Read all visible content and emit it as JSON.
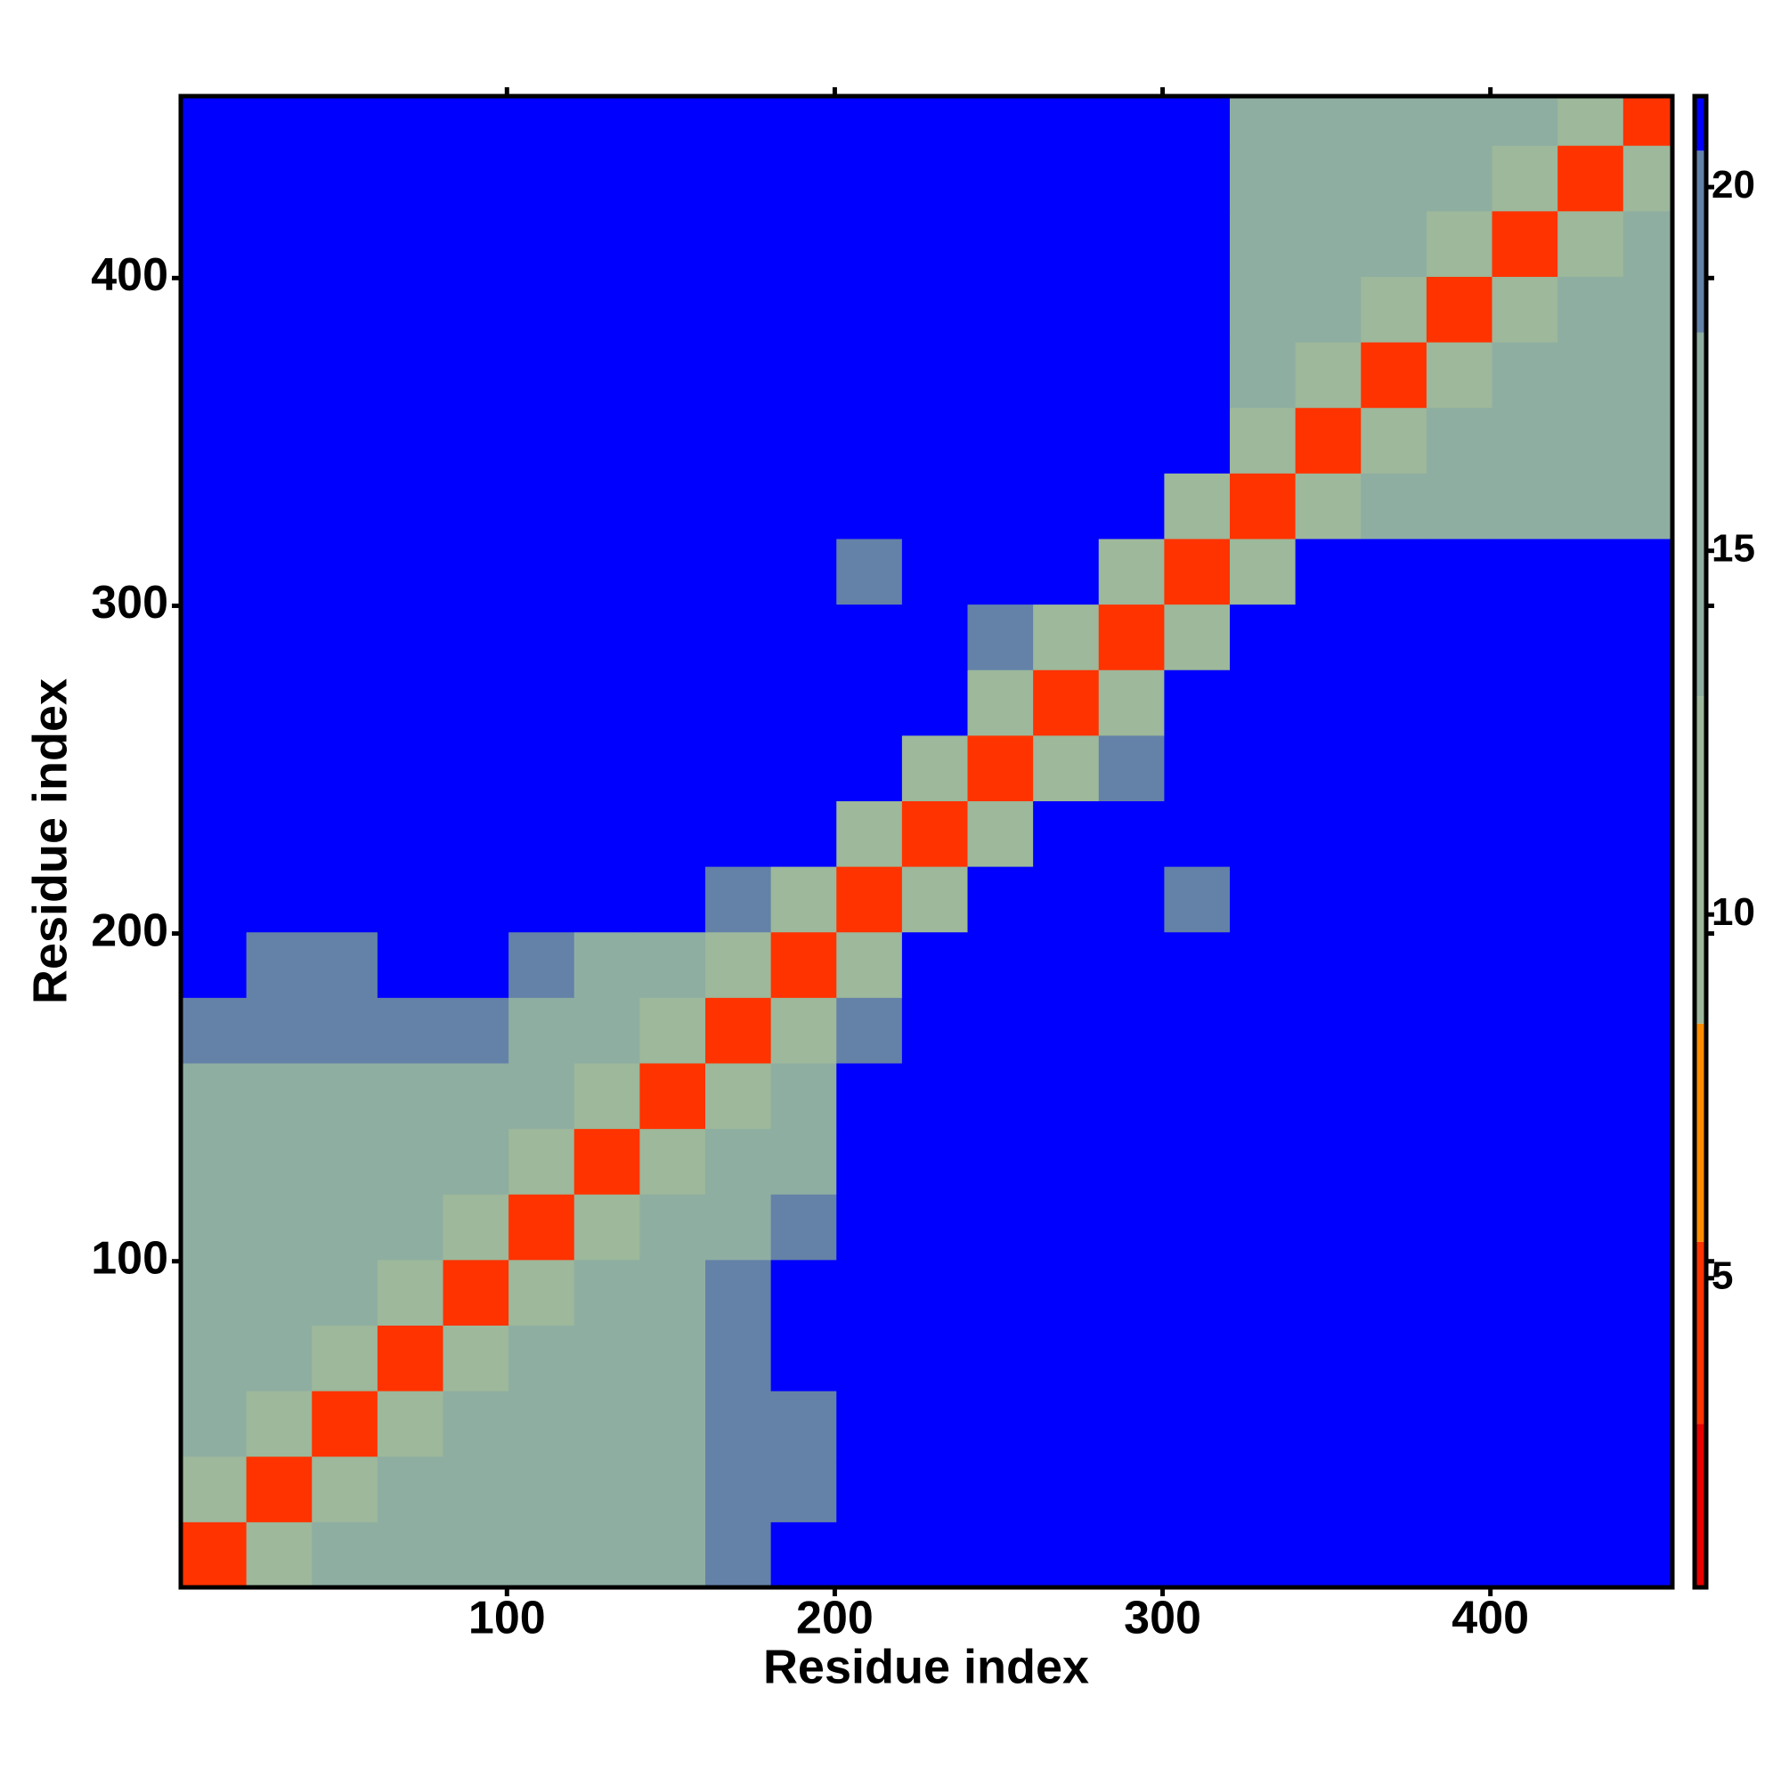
{
  "chart_data": {
    "type": "heatmap",
    "xlabel": "Residue index",
    "ylabel": "Residue index",
    "x": [
      10.5,
      30.5,
      50.5,
      70.5,
      90.5,
      110.5,
      130.5,
      150.5,
      170.5,
      190.5,
      210.5,
      230.5,
      250.5,
      270.5,
      290.5,
      310.5,
      330.5,
      350.5,
      370.5,
      390.5,
      410.5,
      430.5,
      450.5
    ],
    "y": [
      10.5,
      30.5,
      50.5,
      70.5,
      90.5,
      110.5,
      130.5,
      150.5,
      170.5,
      190.5,
      210.5,
      230.5,
      250.5,
      270.5,
      290.5,
      310.5,
      330.5,
      350.5,
      370.5,
      390.5,
      410.5,
      430.5,
      450.5
    ],
    "z": [
      [
        4,
        12,
        17,
        17,
        16,
        16,
        15,
        17,
        18,
        21,
        21,
        21,
        21,
        21,
        21,
        21,
        21,
        21,
        21,
        21,
        21,
        21,
        21
      ],
      [
        12,
        4,
        12,
        16,
        17,
        16,
        15,
        16,
        18,
        18,
        21,
        21,
        21,
        21,
        21,
        21,
        21,
        21,
        21,
        21,
        21,
        21,
        21
      ],
      [
        17,
        12,
        4,
        12,
        15,
        16,
        17,
        17,
        18,
        18,
        21,
        21,
        21,
        21,
        21,
        21,
        21,
        21,
        21,
        21,
        21,
        21,
        21
      ],
      [
        17,
        16,
        12,
        4,
        11,
        14,
        16,
        17,
        18,
        21,
        21,
        21,
        21,
        21,
        21,
        21,
        21,
        21,
        21,
        21,
        21,
        21,
        21
      ],
      [
        16,
        17,
        15,
        11,
        4,
        12,
        15,
        16,
        18,
        21,
        21,
        21,
        21,
        21,
        21,
        21,
        21,
        21,
        21,
        21,
        21,
        21,
        21
      ],
      [
        16,
        16,
        16,
        14,
        12,
        4,
        12,
        15,
        16,
        18,
        21,
        21,
        21,
        21,
        21,
        21,
        21,
        21,
        21,
        21,
        21,
        21,
        21
      ],
      [
        15,
        15,
        17,
        16,
        15,
        12,
        4,
        12,
        14,
        15,
        21,
        21,
        21,
        21,
        21,
        21,
        21,
        21,
        21,
        21,
        21,
        21,
        21
      ],
      [
        17,
        16,
        17,
        17,
        16,
        15,
        12,
        4,
        12,
        15,
        21,
        21,
        21,
        21,
        21,
        21,
        21,
        21,
        21,
        21,
        21,
        21,
        21
      ],
      [
        18,
        18,
        18,
        18,
        18,
        16,
        14,
        12,
        4,
        12,
        18,
        21,
        21,
        21,
        21,
        21,
        21,
        21,
        21,
        21,
        21,
        21,
        21
      ],
      [
        21,
        18,
        18,
        21,
        21,
        18,
        15,
        15,
        12,
        4,
        12,
        21,
        21,
        21,
        21,
        21,
        21,
        21,
        21,
        21,
        21,
        21,
        21
      ],
      [
        21,
        21,
        21,
        21,
        21,
        21,
        21,
        21,
        18,
        12,
        4,
        12,
        21,
        21,
        21,
        18,
        21,
        21,
        21,
        21,
        21,
        21,
        21
      ],
      [
        21,
        21,
        21,
        21,
        21,
        21,
        21,
        21,
        21,
        21,
        12,
        4,
        12,
        21,
        21,
        21,
        21,
        21,
        21,
        21,
        21,
        21,
        21
      ],
      [
        21,
        21,
        21,
        21,
        21,
        21,
        21,
        21,
        21,
        21,
        21,
        12,
        4,
        12,
        18,
        21,
        21,
        21,
        21,
        21,
        21,
        21,
        21
      ],
      [
        21,
        21,
        21,
        21,
        21,
        21,
        21,
        21,
        21,
        21,
        21,
        21,
        12,
        4,
        12,
        21,
        21,
        21,
        21,
        21,
        21,
        21,
        21
      ],
      [
        21,
        21,
        21,
        21,
        21,
        21,
        21,
        21,
        21,
        21,
        21,
        21,
        18,
        12,
        4,
        12,
        21,
        21,
        21,
        21,
        21,
        21,
        21
      ],
      [
        21,
        21,
        21,
        21,
        21,
        21,
        21,
        21,
        21,
        21,
        18,
        21,
        21,
        21,
        12,
        4,
        12,
        21,
        21,
        21,
        21,
        21,
        21
      ],
      [
        21,
        21,
        21,
        21,
        21,
        21,
        21,
        21,
        21,
        21,
        21,
        21,
        21,
        21,
        21,
        12,
        4,
        12,
        16,
        15,
        16,
        17,
        17
      ],
      [
        21,
        21,
        21,
        21,
        21,
        21,
        21,
        21,
        21,
        21,
        21,
        21,
        21,
        21,
        21,
        21,
        12,
        4,
        12,
        15,
        15,
        16,
        17
      ],
      [
        21,
        21,
        21,
        21,
        21,
        21,
        21,
        21,
        21,
        21,
        21,
        21,
        21,
        21,
        21,
        21,
        16,
        12,
        4,
        12,
        14,
        16,
        16
      ],
      [
        21,
        21,
        21,
        21,
        21,
        21,
        21,
        21,
        21,
        21,
        21,
        21,
        21,
        21,
        21,
        21,
        15,
        15,
        12,
        4,
        12,
        15,
        16
      ],
      [
        21,
        21,
        21,
        21,
        21,
        21,
        21,
        21,
        21,
        21,
        21,
        21,
        21,
        21,
        21,
        21,
        16,
        15,
        14,
        12,
        4,
        12,
        15
      ],
      [
        21,
        21,
        21,
        21,
        21,
        21,
        21,
        21,
        21,
        21,
        21,
        21,
        21,
        21,
        21,
        21,
        17,
        16,
        16,
        15,
        12,
        4,
        12
      ],
      [
        21,
        21,
        21,
        21,
        21,
        21,
        21,
        21,
        21,
        21,
        21,
        21,
        21,
        21,
        21,
        21,
        17,
        17,
        16,
        16,
        15,
        12,
        4
      ]
    ],
    "xlim": [
      0.5,
      455.5
    ],
    "ylim": [
      0.5,
      455.5
    ],
    "xticks": [
      100,
      200,
      300,
      400
    ],
    "yticks": [
      100,
      200,
      300,
      400
    ],
    "zlim": [
      0.75,
      21.25
    ],
    "zticks": [
      5,
      10,
      15,
      20
    ],
    "colorscale": [
      [
        0.75,
        "#e60000"
      ],
      [
        3,
        "#ff3300"
      ],
      [
        5.5,
        "#ff8c00"
      ],
      [
        8.5,
        "#9db89a"
      ],
      [
        13,
        "#8faea2"
      ],
      [
        18,
        "#6482a8"
      ],
      [
        20.5,
        "#0000ff"
      ]
    ]
  }
}
